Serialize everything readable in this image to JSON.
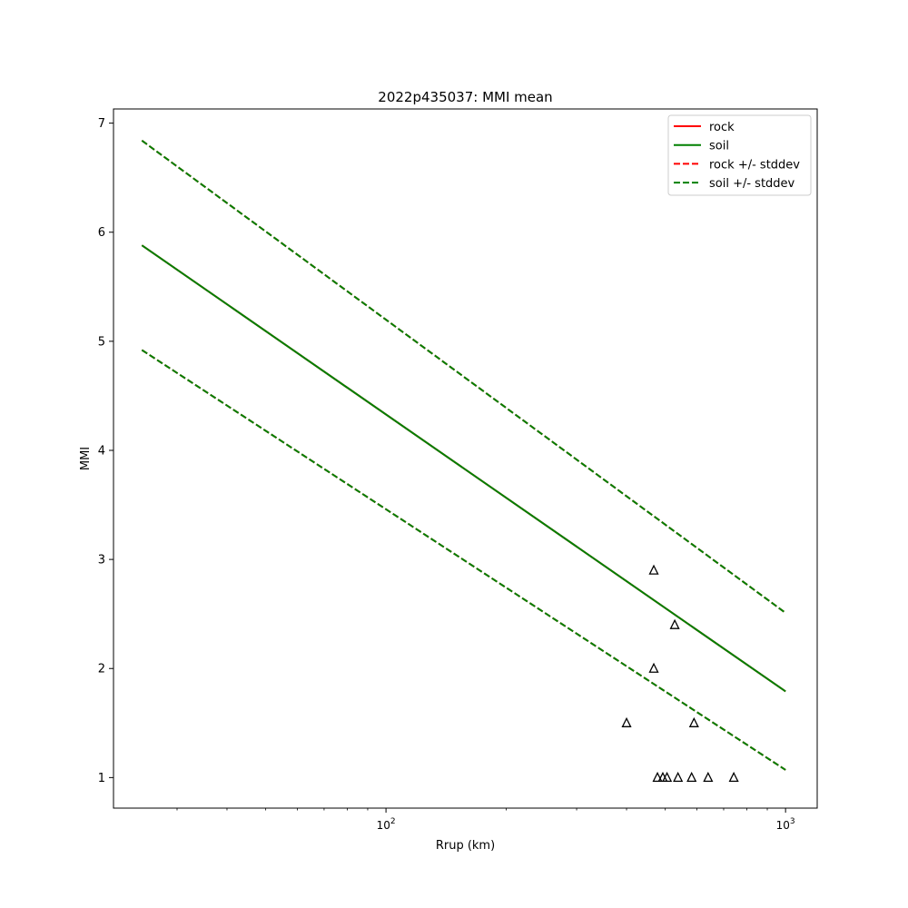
{
  "chart_data": {
    "type": "line",
    "title": "2022p435037: MMI mean",
    "xlabel": "Rrup (km)",
    "ylabel": "MMI",
    "xscale": "log",
    "xlim": [
      20.8,
      1200
    ],
    "ylim": [
      0.72,
      7.13
    ],
    "x_major_ticks": [
      {
        "value": 100,
        "base": "10",
        "exp": "2"
      },
      {
        "value": 1000,
        "base": "10",
        "exp": "3"
      }
    ],
    "y_ticks": [
      1,
      2,
      3,
      4,
      5,
      6,
      7
    ],
    "y_tick_labels": [
      "1",
      "2",
      "3",
      "4",
      "5",
      "6",
      "7"
    ],
    "grid": false,
    "legend_position": "top-right",
    "series": [
      {
        "name": "rock",
        "color": "#ff0000",
        "style": "solid",
        "x": [
          24.5,
          1000
        ],
        "y": [
          5.88,
          1.79
        ]
      },
      {
        "name": "soil",
        "color": "#008000",
        "style": "solid",
        "x": [
          24.5,
          1000
        ],
        "y": [
          5.88,
          1.79
        ]
      },
      {
        "name": "rock +/- stddev",
        "color": "#ff0000",
        "style": "dashed",
        "upper": {
          "x": [
            24.5,
            1000
          ],
          "y": [
            6.84,
            2.51
          ]
        },
        "lower": {
          "x": [
            24.5,
            1000
          ],
          "y": [
            4.92,
            1.07
          ]
        }
      },
      {
        "name": "soil +/- stddev",
        "color": "#008000",
        "style": "dashed",
        "upper": {
          "x": [
            24.5,
            1000
          ],
          "y": [
            6.84,
            2.51
          ]
        },
        "lower": {
          "x": [
            24.5,
            1000
          ],
          "y": [
            4.92,
            1.07
          ]
        }
      }
    ],
    "observations": {
      "marker": "triangle",
      "color": "#000000",
      "points": [
        {
          "x": 400,
          "y": 1.5
        },
        {
          "x": 468,
          "y": 2.9
        },
        {
          "x": 468,
          "y": 2.0
        },
        {
          "x": 528,
          "y": 2.4
        },
        {
          "x": 590,
          "y": 1.5
        },
        {
          "x": 478,
          "y": 1.0
        },
        {
          "x": 493,
          "y": 1.0
        },
        {
          "x": 505,
          "y": 1.0
        },
        {
          "x": 538,
          "y": 1.0
        },
        {
          "x": 582,
          "y": 1.0
        },
        {
          "x": 640,
          "y": 1.0
        },
        {
          "x": 742,
          "y": 1.0
        }
      ]
    }
  }
}
